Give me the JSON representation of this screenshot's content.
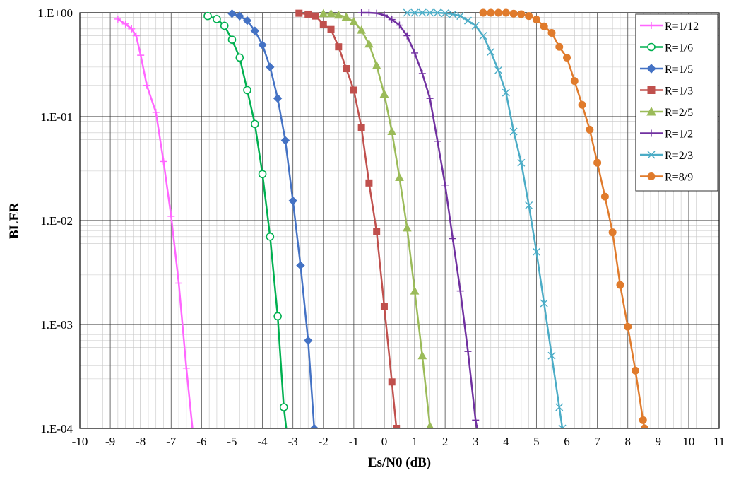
{
  "chart_data": {
    "type": "line",
    "xlabel": "Es/N0 (dB)",
    "ylabel": "BLER",
    "xlim": [
      -10,
      11
    ],
    "ylim": [
      0.0001,
      1
    ],
    "y_scale": "log",
    "grid": "major and minor",
    "legend_position": "top-right",
    "x_ticks": [
      "-10",
      "-9",
      "-8",
      "-7",
      "-6",
      "-5",
      "-4",
      "-3",
      "-2",
      "-1",
      "0",
      "1",
      "2",
      "3",
      "4",
      "5",
      "6",
      "7",
      "8",
      "9",
      "10",
      "11"
    ],
    "y_ticks": [
      {
        "value": 1,
        "label": "1.E+00"
      },
      {
        "value": 0.1,
        "label": "1.E-01"
      },
      {
        "value": 0.01,
        "label": "1.E-02"
      },
      {
        "value": 0.001,
        "label": "1.E-03"
      },
      {
        "value": 0.0001,
        "label": "1.E-04"
      }
    ],
    "series": [
      {
        "name": "R=1/12",
        "color": "#ff66ff",
        "marker": "plus",
        "points": [
          [
            -8.75,
            0.87
          ],
          [
            -8.5,
            0.78
          ],
          [
            -8.3,
            0.7
          ],
          [
            -8.15,
            0.6
          ],
          [
            -8.0,
            0.39
          ],
          [
            -7.8,
            0.2
          ],
          [
            -7.5,
            0.11
          ],
          [
            -7.25,
            0.037
          ],
          [
            -7.0,
            0.011
          ],
          [
            -6.75,
            0.0025
          ],
          [
            -6.5,
            0.00038
          ],
          [
            -6.3,
            0.0001
          ]
        ]
      },
      {
        "name": "R=1/6",
        "color": "#00b050",
        "marker": "circle",
        "points": [
          [
            -5.8,
            0.93
          ],
          [
            -5.5,
            0.87
          ],
          [
            -5.25,
            0.75
          ],
          [
            -5.0,
            0.55
          ],
          [
            -4.75,
            0.37
          ],
          [
            -4.5,
            0.18
          ],
          [
            -4.25,
            0.085
          ],
          [
            -4.0,
            0.028
          ],
          [
            -3.75,
            0.007
          ],
          [
            -3.5,
            0.0012
          ],
          [
            -3.3,
            0.00016
          ],
          [
            -3.2,
            9e-05
          ]
        ]
      },
      {
        "name": "R=1/5",
        "color": "#4472c4",
        "marker": "diamond",
        "points": [
          [
            -5.0,
            0.98
          ],
          [
            -4.75,
            0.93
          ],
          [
            -4.5,
            0.84
          ],
          [
            -4.25,
            0.67
          ],
          [
            -4.0,
            0.49
          ],
          [
            -3.75,
            0.3
          ],
          [
            -3.5,
            0.15
          ],
          [
            -3.25,
            0.059
          ],
          [
            -3.0,
            0.0155
          ],
          [
            -2.75,
            0.0037
          ],
          [
            -2.5,
            0.0007
          ],
          [
            -2.3,
            0.0001
          ]
        ]
      },
      {
        "name": "R=1/3",
        "color": "#c0504d",
        "marker": "square",
        "points": [
          [
            -2.8,
            0.99
          ],
          [
            -2.5,
            0.97
          ],
          [
            -2.25,
            0.93
          ],
          [
            -2.0,
            0.77
          ],
          [
            -1.75,
            0.69
          ],
          [
            -1.5,
            0.47
          ],
          [
            -1.25,
            0.29
          ],
          [
            -1.0,
            0.18
          ],
          [
            -0.75,
            0.079
          ],
          [
            -0.5,
            0.023
          ],
          [
            -0.25,
            0.0078
          ],
          [
            0.0,
            0.0015
          ],
          [
            0.25,
            0.00028
          ],
          [
            0.4,
            0.0001
          ]
        ]
      },
      {
        "name": "R=2/5",
        "color": "#9bbb59",
        "marker": "triangle",
        "points": [
          [
            -2.0,
            0.98
          ],
          [
            -1.75,
            0.98
          ],
          [
            -1.5,
            0.95
          ],
          [
            -1.25,
            0.91
          ],
          [
            -1.0,
            0.82
          ],
          [
            -0.75,
            0.68
          ],
          [
            -0.5,
            0.5
          ],
          [
            -0.25,
            0.31
          ],
          [
            0.0,
            0.165
          ],
          [
            0.25,
            0.072
          ],
          [
            0.5,
            0.026
          ],
          [
            0.75,
            0.0085
          ],
          [
            1.0,
            0.0021
          ],
          [
            1.25,
            0.0005
          ],
          [
            1.5,
            0.000105
          ],
          [
            1.6,
            8e-05
          ]
        ]
      },
      {
        "name": "R=1/2",
        "color": "#7030a0",
        "marker": "plus",
        "points": [
          [
            -0.75,
            1.0
          ],
          [
            -0.5,
            1.0
          ],
          [
            -0.25,
            0.99
          ],
          [
            0.0,
            0.95
          ],
          [
            0.25,
            0.86
          ],
          [
            0.5,
            0.76
          ],
          [
            0.75,
            0.6
          ],
          [
            1.0,
            0.41
          ],
          [
            1.25,
            0.26
          ],
          [
            1.5,
            0.15
          ],
          [
            1.75,
            0.058
          ],
          [
            2.0,
            0.022
          ],
          [
            2.25,
            0.0067
          ],
          [
            2.5,
            0.0021
          ],
          [
            2.75,
            0.00055
          ],
          [
            3.0,
            0.00012
          ],
          [
            3.05,
            0.0001
          ]
        ]
      },
      {
        "name": "R=2/3",
        "color": "#4bacc6",
        "marker": "x",
        "points": [
          [
            0.75,
            1.0
          ],
          [
            1.0,
            1.0
          ],
          [
            1.25,
            1.0
          ],
          [
            1.5,
            1.0
          ],
          [
            1.75,
            1.0
          ],
          [
            2.0,
            0.99
          ],
          [
            2.25,
            0.97
          ],
          [
            2.5,
            0.93
          ],
          [
            2.75,
            0.84
          ],
          [
            3.0,
            0.75
          ],
          [
            3.25,
            0.6
          ],
          [
            3.5,
            0.42
          ],
          [
            3.75,
            0.28
          ],
          [
            4.0,
            0.17
          ],
          [
            4.25,
            0.072
          ],
          [
            4.5,
            0.036
          ],
          [
            4.75,
            0.014
          ],
          [
            5.0,
            0.005
          ],
          [
            5.25,
            0.0016
          ],
          [
            5.5,
            0.0005
          ],
          [
            5.75,
            0.00016
          ],
          [
            5.85,
            0.0001
          ]
        ]
      },
      {
        "name": "R=8/9",
        "color": "#e07b2c",
        "marker": "circle-filled",
        "points": [
          [
            3.25,
            1.0
          ],
          [
            3.5,
            1.0
          ],
          [
            3.75,
            1.0
          ],
          [
            4.0,
            1.0
          ],
          [
            4.25,
            0.98
          ],
          [
            4.5,
            0.97
          ],
          [
            4.75,
            0.93
          ],
          [
            5.0,
            0.86
          ],
          [
            5.25,
            0.74
          ],
          [
            5.5,
            0.64
          ],
          [
            5.75,
            0.47
          ],
          [
            6.0,
            0.37
          ],
          [
            6.25,
            0.22
          ],
          [
            6.5,
            0.13
          ],
          [
            6.75,
            0.075
          ],
          [
            7.0,
            0.036
          ],
          [
            7.25,
            0.017
          ],
          [
            7.5,
            0.0077
          ],
          [
            7.75,
            0.0024
          ],
          [
            8.0,
            0.00095
          ],
          [
            8.25,
            0.00036
          ],
          [
            8.5,
            0.00012
          ],
          [
            8.55,
            0.0001
          ]
        ]
      }
    ]
  }
}
